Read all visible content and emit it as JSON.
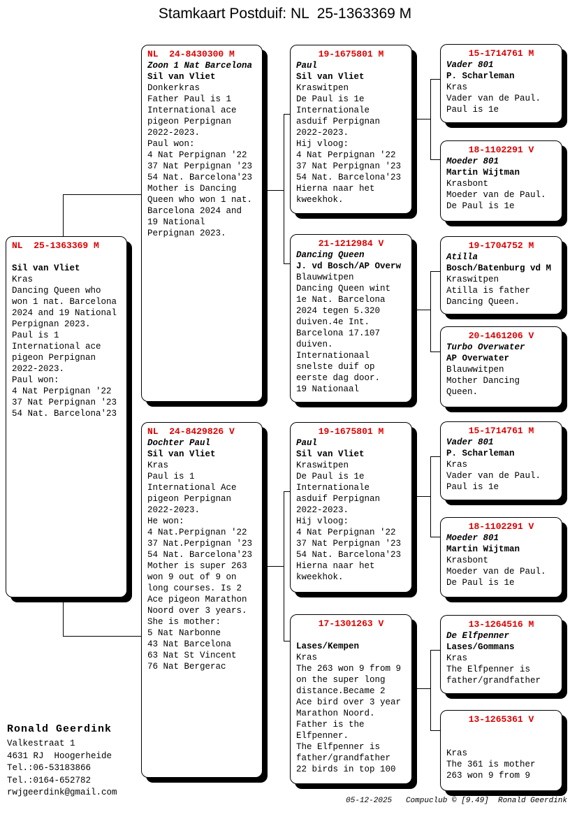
{
  "title": "Stamkaart Postduif: NL  25-1363369 M",
  "colors": {
    "ring_red": "#dd0000",
    "line_black": "#000000",
    "box_shadow": "#000000"
  },
  "boxes": {
    "main": {
      "ring": "NL  25-1363369 M",
      "name": "",
      "breeder": "Sil van Vliet",
      "lines": [
        "Kras",
        "Dancing Queen who",
        "won 1 nat. Barcelona",
        "2024 and 19 National",
        "Perpignan 2023.",
        "Paul is 1",
        "International ace",
        "pigeon Perpignan",
        "2022-2023.",
        "Paul won:",
        "4 Nat Perpignan '22",
        "37 Nat Perpignan '23",
        "54 Nat. Barcelona'23"
      ]
    },
    "p1": {
      "ring": "NL  24-8430300 M",
      "name": "Zoon 1 Nat Barcelona",
      "breeder": "Sil van Vliet",
      "lines": [
        "Donkerkras",
        "Father Paul is 1",
        "International ace",
        "pigeon Perpignan",
        "2022-2023.",
        "Paul won:",
        "4 Nat Perpignan '22",
        "37 Nat Perpignan '23",
        "54 Nat. Barcelona'23",
        "Mother is Dancing",
        "Queen who won 1 nat.",
        "Barcelona 2024 and",
        "19 National",
        "Perpignan 2023."
      ]
    },
    "p2": {
      "ring": "NL  24-8429826 V",
      "name": "Dochter Paul",
      "breeder": "Sil van Vliet",
      "lines": [
        "Kras",
        "Paul is 1",
        "International Ace",
        "pigeon Perpignan",
        "2022-2023.",
        "He won:",
        "4 Nat.Perpignan '22",
        "37 Nat.Perpignan '23",
        "54 Nat. Barcelona'23",
        "Mother is super 263",
        "won 9 out of 9 on",
        "long courses. Is 2",
        "Ace pigeon Marathon",
        "Noord over 3 years.",
        "She is mother:",
        "5 Nat Narbonne",
        "43 Nat Barcelona",
        "63 Nat St Vincent",
        "76 Nat Bergerac"
      ]
    },
    "g1": {
      "ring": "19-1675801 M",
      "name": "Paul",
      "breeder": "Sil van Vliet",
      "lines": [
        "Kraswitpen",
        "De Paul is 1e",
        "Internationale",
        "asduif Perpignan",
        "2022-2023.",
        "Hij vloog:",
        "4 Nat Perpignan '22",
        "37 Nat Perpignan '23",
        "54 Nat. Barcelona'23",
        "Hierna naar het",
        "kweekhok."
      ]
    },
    "g2": {
      "ring": "21-1212984 V",
      "name": "Dancing Queen",
      "breeder": "J. vd Bosch/AP Overw",
      "lines": [
        "Blauwwitpen",
        "Dancing Queen wint",
        "1e Nat. Barcelona",
        "2024 tegen 5.320",
        "duiven.4e Int.",
        "Barcelona 17.107",
        "duiven.",
        "Internationaal",
        "snelste duif op",
        "eerste dag door.",
        "19 Nationaal"
      ]
    },
    "g3": {
      "ring": "19-1675801 M",
      "name": "Paul",
      "breeder": "Sil van Vliet",
      "lines": [
        "Kraswitpen",
        "De Paul is 1e",
        "Internationale",
        "asduif Perpignan",
        "2022-2023.",
        "Hij vloog:",
        "4 Nat Perpignan '22",
        "37 Nat Perpignan '23",
        "54 Nat. Barcelona'23",
        "Hierna naar het",
        "kweekhok."
      ]
    },
    "g4": {
      "ring": "17-1301263 V",
      "name": "",
      "breeder": "Lases/Kempen",
      "lines": [
        "Kras",
        "The 263 won 9 from 9",
        "on the super long",
        "distance.Became 2",
        "Ace bird over 3 year",
        "Marathon Noord.",
        "Father is the",
        "Elfpenner.",
        "The Elfpenner is",
        "father/grandfather",
        "22 birds in top 100"
      ]
    },
    "gg1": {
      "ring": "15-1714761 M",
      "name": "Vader 801",
      "breeder": "P. Scharleman",
      "lines": [
        "Kras",
        "Vader van de Paul.",
        "Paul is 1e"
      ]
    },
    "gg2": {
      "ring": "18-1102291 V",
      "name": "Moeder 801",
      "breeder": "Martin Wijtman",
      "lines": [
        "Krasbont",
        "Moeder van de Paul.",
        "De Paul is 1e"
      ]
    },
    "gg3": {
      "ring": "19-1704752 M",
      "name": "Atilla",
      "breeder": "Bosch/Batenburg vd M",
      "lines": [
        "Kraswitpen",
        "Atilla is father",
        "Dancing Queen."
      ]
    },
    "gg4": {
      "ring": "20-1461206 V",
      "name": "Turbo Overwater",
      "breeder": "AP Overwater",
      "lines": [
        "Blauwwitpen",
        "Mother Dancing",
        "Queen."
      ]
    },
    "gg5": {
      "ring": "15-1714761 M",
      "name": "Vader 801",
      "breeder": "P. Scharleman",
      "lines": [
        "Kras",
        "Vader van de Paul.",
        "Paul is 1e"
      ]
    },
    "gg6": {
      "ring": "18-1102291 V",
      "name": "Moeder 801",
      "breeder": "Martin Wijtman",
      "lines": [
        "Krasbont",
        "Moeder van de Paul.",
        "De Paul is 1e"
      ]
    },
    "gg7": {
      "ring": "13-1264516 M",
      "name": "De Elfpenner",
      "breeder": "Lases/Gommans",
      "lines": [
        "Kras",
        "The Elfpenner is",
        "father/grandfather"
      ]
    },
    "gg8": {
      "ring": "13-1265361 V",
      "name": "",
      "breeder": "",
      "lines": [
        "Kras",
        "The 361 is mother",
        "263 won 9 from 9"
      ]
    }
  },
  "owner": {
    "name": "Ronald Geerdink",
    "lines": [
      "Valkestraat 1",
      "4631 RJ  Hoogerheide",
      "Tel.:06-53183866",
      "Tel.:0164-652782",
      "rwjgeerdink@gmail.com"
    ]
  },
  "footer": {
    "credit": "05-12-2025   Compuclub © [9.49]  Ronald Geerdink"
  }
}
